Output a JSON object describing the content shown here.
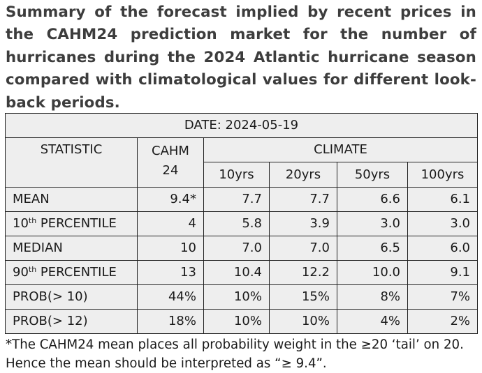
{
  "title": "Summary of the forecast implied by recent prices in the CAHM24 prediction market for the number of hurricanes during the 2024 Atlantic hurricane season compared with climatological values for different look-back periods.",
  "table": {
    "date": "DATE: 2024-05-19",
    "statistic_header": "STATISTIC",
    "cahm_header_line1": "CAHM",
    "cahm_header_line2": "24",
    "climate_header": "CLIMATE",
    "periods": [
      "10yrs",
      "20yrs",
      "50yrs",
      "100yrs"
    ],
    "rows": [
      {
        "label": "MEAN",
        "sup": "",
        "label_rest": "",
        "cahm": "9.4*",
        "climate": [
          "7.7",
          "7.7",
          "6.6",
          "6.1"
        ]
      },
      {
        "label": "10",
        "sup": "th",
        "label_rest": " PERCENTILE",
        "cahm": "4",
        "climate": [
          "5.8",
          "3.9",
          "3.0",
          "3.0"
        ]
      },
      {
        "label": "MEDIAN",
        "sup": "",
        "label_rest": "",
        "cahm": "10",
        "climate": [
          "7.0",
          "7.0",
          "6.5",
          "6.0"
        ]
      },
      {
        "label": "90",
        "sup": "th",
        "label_rest": " PERCENTILE",
        "cahm": "13",
        "climate": [
          "10.4",
          "12.2",
          "10.0",
          "9.1"
        ]
      },
      {
        "label": "PROB(> 10)",
        "sup": "",
        "label_rest": "",
        "cahm": "44%",
        "climate": [
          "10%",
          "15%",
          "8%",
          "7%"
        ]
      },
      {
        "label": "PROB(> 12)",
        "sup": "",
        "label_rest": "",
        "cahm": "18%",
        "climate": [
          "10%",
          "10%",
          "4%",
          "2%"
        ]
      }
    ]
  },
  "footnote": "*The CAHM24 mean places all probability weight in the ≥20 ‘tail’ on 20. Hence the mean should be interpreted as “≥ 9.4”.",
  "colors": {
    "table_bg": "#eeeeee",
    "title_text": "#3d3d3d",
    "border": "#222222"
  }
}
